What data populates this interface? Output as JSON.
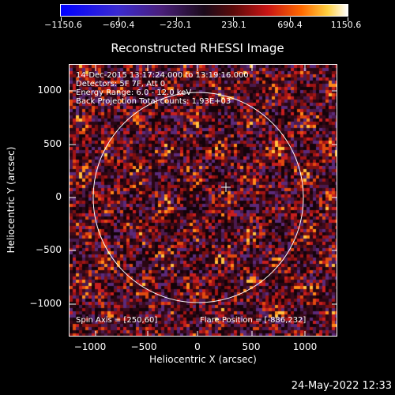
{
  "colorbar": {
    "tick_labels": [
      "−1150.6",
      "−690.4",
      "−230.1",
      "230.1",
      "690.4",
      "1150.6"
    ]
  },
  "title": "Reconstructed RHESSI Image",
  "info": {
    "line1": "14-Dec-2015 13:17:24.000 to 13:19:16.000",
    "line2": "Detectors: 5F 7F, Att 0",
    "line3": "Energy Range: 6.0 - 12.0 keV",
    "line4": "Back Projection    Total counts: 1.93E+03",
    "spin_axis": "Spin Axis = [250,60]",
    "flare_position": "Flare Position = [-886,232]"
  },
  "axes": {
    "xlabel": "Heliocentric X (arcsec)",
    "ylabel": "Heliocentric Y (arcsec)",
    "x_ticks": [
      "−1000",
      "−500",
      "0",
      "500",
      "1000"
    ],
    "y_ticks": [
      "1000",
      "500",
      "0",
      "−500",
      "−1000"
    ]
  },
  "timestamp": "24-May-2022 12:33",
  "colors": {
    "foreground": "#ffffff",
    "background": "#000000"
  }
}
